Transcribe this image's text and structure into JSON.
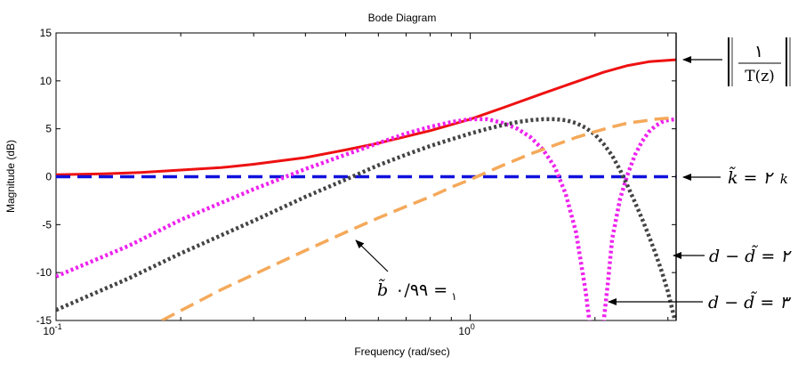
{
  "chart_data": {
    "type": "line",
    "title": "Bode Diagram",
    "xlabel": "Frequency  (rad/sec)",
    "ylabel": "Magnitude (dB)",
    "xscale": "log",
    "xlim": [
      0.1,
      3.14
    ],
    "ylim": [
      -15,
      15
    ],
    "grid": false,
    "x_ticks": [
      {
        "value": 0.1,
        "base": "10",
        "exp": "-1"
      },
      {
        "value": 1,
        "base": "10",
        "exp": "0"
      }
    ],
    "y_ticks": [
      {
        "value": 15,
        "label": "15"
      },
      {
        "value": 10,
        "label": "10"
      },
      {
        "value": 5,
        "label": "5"
      },
      {
        "value": 0,
        "label": "0"
      },
      {
        "value": -5,
        "label": "-5"
      },
      {
        "value": -10,
        "label": "-10"
      },
      {
        "value": -15,
        "label": "-15"
      }
    ],
    "series": [
      {
        "color": "#ee1111",
        "dash": "solid",
        "x": [
          0.1,
          0.13,
          0.16,
          0.2,
          0.25,
          0.3,
          0.4,
          0.5,
          0.6,
          0.8,
          1.0,
          1.2,
          1.5,
          1.8,
          2.1,
          2.4,
          2.7,
          3.0,
          3.14
        ],
        "y": [
          0.2,
          0.3,
          0.45,
          0.7,
          0.95,
          1.3,
          2.0,
          2.8,
          3.5,
          4.8,
          6.0,
          7.2,
          8.7,
          9.9,
          10.9,
          11.6,
          12.0,
          12.15,
          12.2
        ]
      },
      {
        "color": "#1111dd",
        "dash": "dash",
        "x": [
          0.1,
          3.14
        ],
        "y": [
          0,
          0
        ]
      },
      {
        "color": "#ee22ee",
        "dash": "dot",
        "x": [
          0.1,
          0.15,
          0.2,
          0.3,
          0.4,
          0.5,
          0.6,
          0.7,
          0.8,
          0.9,
          1.0,
          1.1,
          1.2,
          1.3,
          1.4,
          1.5,
          1.6,
          1.7,
          1.8,
          1.9,
          1.95,
          2.0,
          2.05,
          2.1,
          2.15,
          2.2,
          2.3,
          2.4,
          2.5,
          2.6,
          2.7,
          2.8,
          2.9,
          3.0,
          3.14
        ],
        "y": [
          -10.4,
          -7.2,
          -4.5,
          -1.3,
          0.8,
          2.3,
          3.5,
          4.5,
          5.2,
          5.7,
          6.0,
          6.0,
          5.6,
          5.0,
          4.1,
          2.8,
          1.0,
          -1.8,
          -5.8,
          -12.0,
          -16.0,
          -17.0,
          -17.0,
          -15.0,
          -11.0,
          -6.5,
          -2.3,
          0.3,
          2.3,
          3.7,
          4.7,
          5.3,
          5.7,
          5.9,
          6.0
        ]
      },
      {
        "color": "#444444",
        "dash": "dot",
        "x": [
          0.1,
          0.15,
          0.2,
          0.3,
          0.4,
          0.5,
          0.6,
          0.7,
          0.8,
          0.9,
          1.0,
          1.1,
          1.2,
          1.3,
          1.4,
          1.5,
          1.6,
          1.7,
          1.8,
          1.9,
          2.0,
          2.1,
          2.2,
          2.3,
          2.4,
          2.5,
          2.6,
          2.7,
          2.8,
          2.9,
          3.0,
          3.1,
          3.14
        ],
        "y": [
          -13.9,
          -10.6,
          -8.0,
          -4.6,
          -2.1,
          -0.3,
          1.2,
          2.3,
          3.2,
          3.9,
          4.5,
          5.0,
          5.4,
          5.7,
          5.9,
          6.0,
          6.0,
          5.9,
          5.6,
          5.1,
          4.4,
          3.4,
          2.2,
          0.7,
          -1.0,
          -2.7,
          -4.4,
          -6.2,
          -8.0,
          -9.9,
          -12.0,
          -14.5,
          -15.5
        ]
      },
      {
        "color": "#f5a95a",
        "dash": "dash",
        "x": [
          0.18,
          0.25,
          0.3,
          0.4,
          0.5,
          0.6,
          0.7,
          0.8,
          0.9,
          1.0,
          1.2,
          1.4,
          1.6,
          1.8,
          2.0,
          2.2,
          2.4,
          2.6,
          2.8,
          3.0,
          3.14
        ],
        "y": [
          -15,
          -11.8,
          -10.2,
          -7.7,
          -5.8,
          -4.3,
          -3.1,
          -2.1,
          -1.1,
          -0.3,
          1.2,
          2.4,
          3.3,
          4.1,
          4.7,
          5.2,
          5.6,
          5.8,
          6.0,
          6.1,
          6.2
        ]
      }
    ],
    "annotations": [
      {
        "id": "inv-t",
        "numerator": "١",
        "denominator": "T(z)"
      },
      {
        "id": "k-tilde",
        "main": "k̃ = ٢",
        "tail": "k"
      },
      {
        "id": "b-tilde",
        "main": "b̃",
        "sub": "١",
        "tail": "= ٠/٩٩"
      },
      {
        "id": "d-diff-2",
        "text": "d − d̃ = ٢"
      },
      {
        "id": "d-diff-3",
        "text": "d − d̃ = ٣"
      }
    ]
  }
}
